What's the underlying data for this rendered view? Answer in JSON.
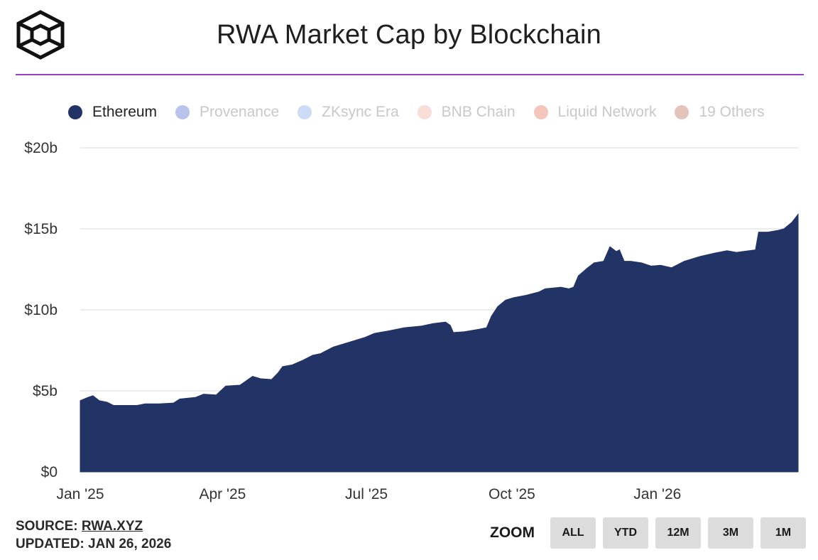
{
  "header": {
    "title": "RWA Market Cap by Blockchain"
  },
  "legend": [
    {
      "label": "Ethereum",
      "color": "#223366",
      "active": true
    },
    {
      "label": "Provenance",
      "color": "#b8c4ec",
      "active": false
    },
    {
      "label": "ZKsync Era",
      "color": "#cddcf6",
      "active": false
    },
    {
      "label": "BNB Chain",
      "color": "#f8ded6",
      "active": false
    },
    {
      "label": "Liquid Network",
      "color": "#f4c6bb",
      "active": false
    },
    {
      "label": "19 Others",
      "color": "#e3c4bb",
      "active": false
    }
  ],
  "footer": {
    "source_label": "SOURCE:",
    "source_value": "RWA.XYZ",
    "updated_label": "UPDATED:",
    "updated_value": "JAN 26, 2026"
  },
  "zoom": {
    "label": "ZOOM",
    "buttons": [
      "ALL",
      "YTD",
      "12M",
      "3M",
      "1M"
    ]
  },
  "chart_data": {
    "type": "area",
    "title": "RWA Market Cap by Blockchain",
    "ylabel": "",
    "xlabel": "",
    "ylim": [
      0,
      20
    ],
    "yticks": [
      "$0",
      "$5b",
      "$10b",
      "$15b",
      "$20b"
    ],
    "xticks": [
      {
        "date": "2025-01-01",
        "label": "Jan '25"
      },
      {
        "date": "2025-04-01",
        "label": "Apr '25"
      },
      {
        "date": "2025-07-01",
        "label": "Jul '25"
      },
      {
        "date": "2025-10-01",
        "label": "Oct '25"
      },
      {
        "date": "2026-01-01",
        "label": "Jan '26"
      }
    ],
    "grid": true,
    "legend_position": "top",
    "series": [
      {
        "name": "Ethereum",
        "color": "#223366",
        "points": [
          [
            "2025-01-01",
            4.4
          ],
          [
            "2025-01-06",
            4.6
          ],
          [
            "2025-01-09",
            4.7
          ],
          [
            "2025-01-13",
            4.4
          ],
          [
            "2025-01-18",
            4.3
          ],
          [
            "2025-01-22",
            4.1
          ],
          [
            "2025-02-01",
            4.1
          ],
          [
            "2025-02-06",
            4.1
          ],
          [
            "2025-02-11",
            4.2
          ],
          [
            "2025-02-20",
            4.2
          ],
          [
            "2025-03-01",
            4.25
          ],
          [
            "2025-03-05",
            4.5
          ],
          [
            "2025-03-15",
            4.6
          ],
          [
            "2025-03-20",
            4.8
          ],
          [
            "2025-03-28",
            4.75
          ],
          [
            "2025-04-03",
            5.3
          ],
          [
            "2025-04-12",
            5.35
          ],
          [
            "2025-04-20",
            5.9
          ],
          [
            "2025-04-25",
            5.75
          ],
          [
            "2025-05-02",
            5.7
          ],
          [
            "2025-05-06",
            6.1
          ],
          [
            "2025-05-09",
            6.5
          ],
          [
            "2025-05-15",
            6.6
          ],
          [
            "2025-05-22",
            6.9
          ],
          [
            "2025-05-28",
            7.2
          ],
          [
            "2025-06-02",
            7.3
          ],
          [
            "2025-06-10",
            7.7
          ],
          [
            "2025-06-20",
            8.0
          ],
          [
            "2025-06-30",
            8.3
          ],
          [
            "2025-07-06",
            8.55
          ],
          [
            "2025-07-15",
            8.7
          ],
          [
            "2025-07-25",
            8.9
          ],
          [
            "2025-08-05",
            9.0
          ],
          [
            "2025-08-12",
            9.15
          ],
          [
            "2025-08-20",
            9.25
          ],
          [
            "2025-08-23",
            9.05
          ],
          [
            "2025-08-25",
            8.6
          ],
          [
            "2025-09-01",
            8.65
          ],
          [
            "2025-09-10",
            8.8
          ],
          [
            "2025-09-15",
            8.9
          ],
          [
            "2025-09-18",
            9.6
          ],
          [
            "2025-09-22",
            10.2
          ],
          [
            "2025-09-27",
            10.6
          ],
          [
            "2025-10-02",
            10.75
          ],
          [
            "2025-10-10",
            10.9
          ],
          [
            "2025-10-18",
            11.1
          ],
          [
            "2025-10-22",
            11.3
          ],
          [
            "2025-11-01",
            11.4
          ],
          [
            "2025-11-06",
            11.3
          ],
          [
            "2025-11-09",
            11.4
          ],
          [
            "2025-11-12",
            12.1
          ],
          [
            "2025-11-18",
            12.6
          ],
          [
            "2025-11-22",
            12.9
          ],
          [
            "2025-11-28",
            13.0
          ],
          [
            "2025-12-02",
            13.9
          ],
          [
            "2025-12-06",
            13.6
          ],
          [
            "2025-12-08",
            13.7
          ],
          [
            "2025-12-11",
            13.0
          ],
          [
            "2025-12-15",
            13.0
          ],
          [
            "2025-12-22",
            12.9
          ],
          [
            "2025-12-28",
            12.7
          ],
          [
            "2026-01-03",
            12.75
          ],
          [
            "2026-01-10",
            12.6
          ],
          [
            "2026-01-18",
            13.0
          ],
          [
            "2026-01-28",
            13.3
          ],
          [
            "2026-02-06",
            13.5
          ],
          [
            "2026-02-14",
            13.65
          ],
          [
            "2026-02-20",
            13.55
          ],
          [
            "2026-02-28",
            13.65
          ],
          [
            "2026-03-04",
            13.7
          ],
          [
            "2026-03-06",
            14.8
          ],
          [
            "2026-03-12",
            14.8
          ],
          [
            "2026-03-18",
            14.9
          ],
          [
            "2026-03-22",
            15.0
          ],
          [
            "2026-03-27",
            15.4
          ],
          [
            "2026-03-31",
            15.9
          ]
        ]
      }
    ]
  }
}
